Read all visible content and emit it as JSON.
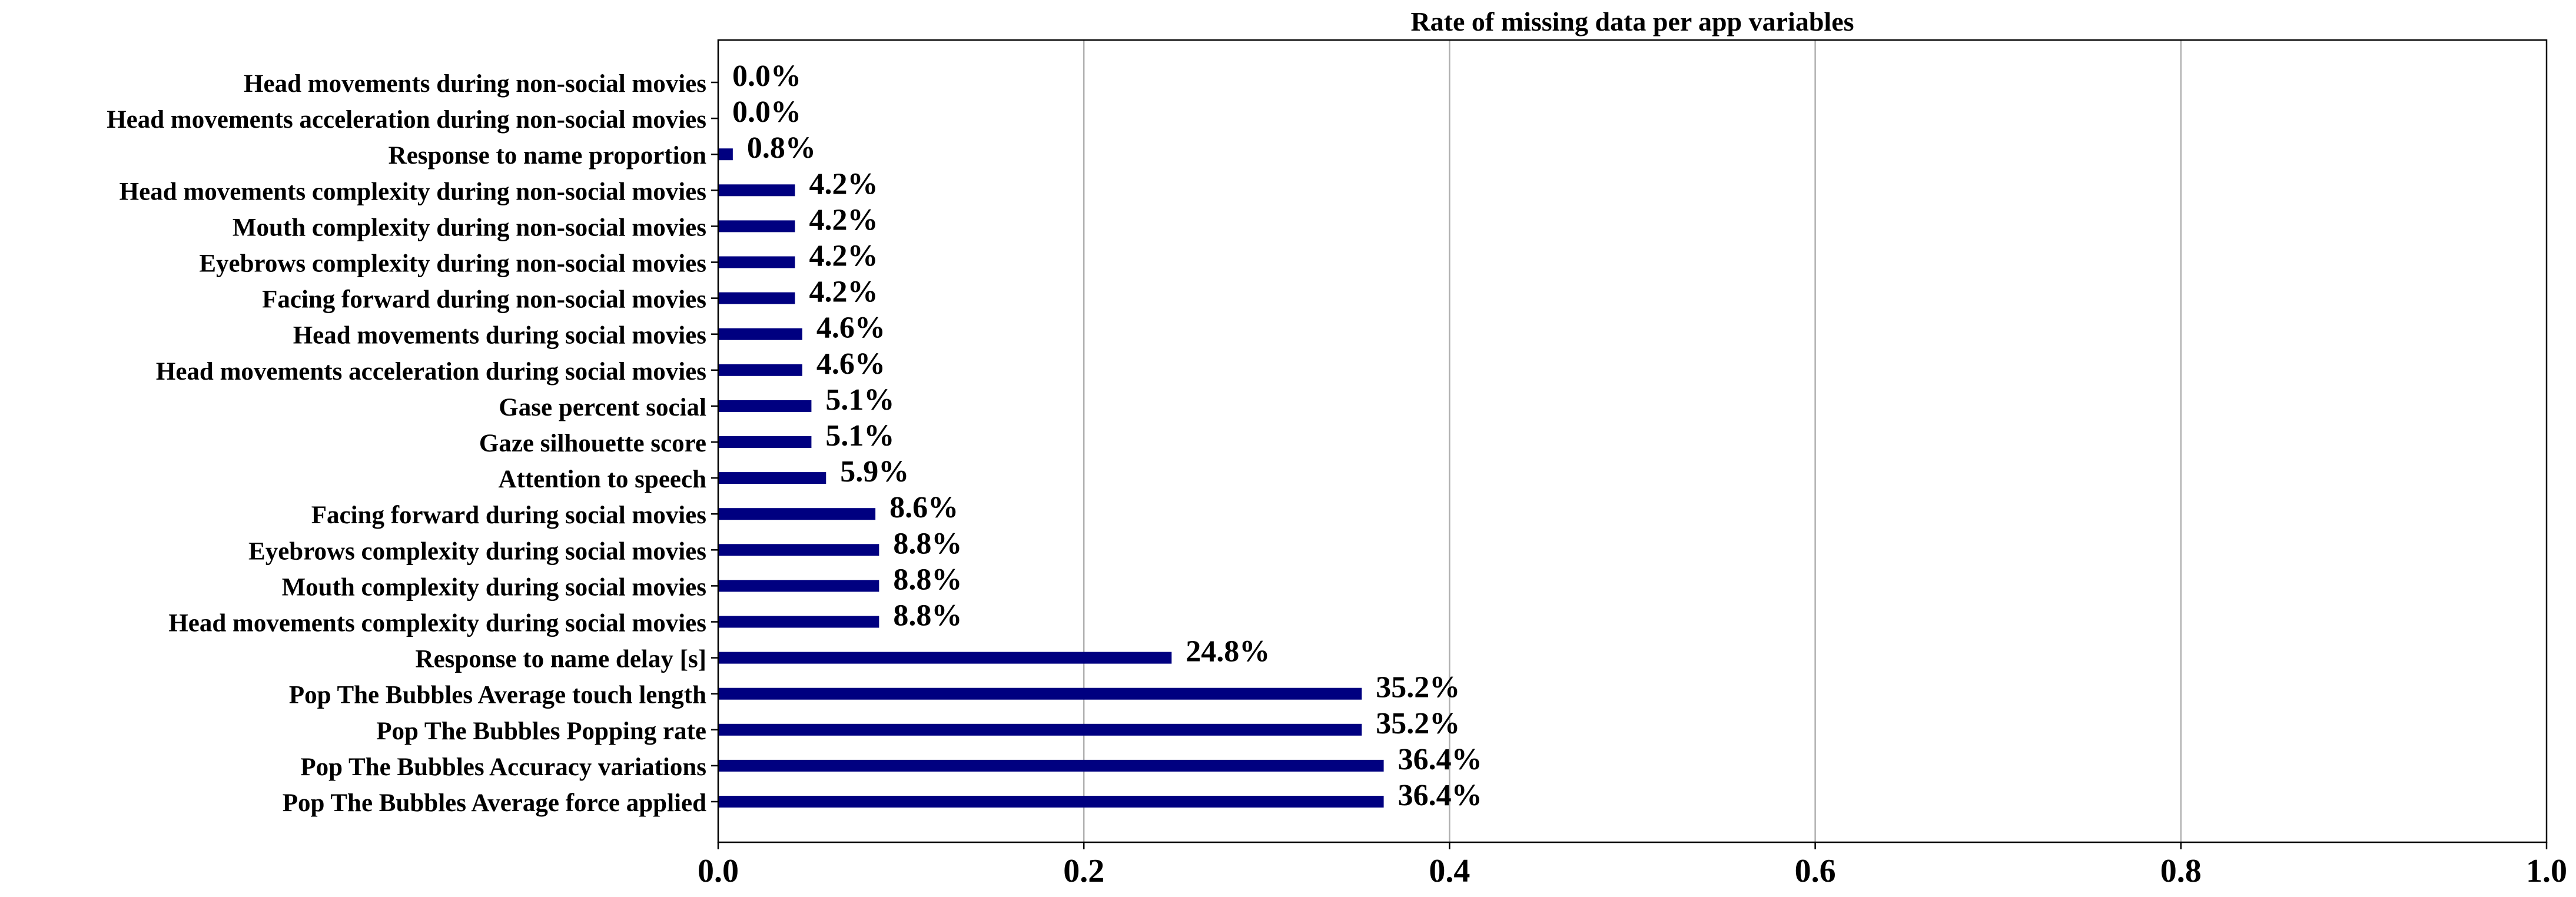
{
  "chart_data": {
    "type": "bar",
    "orientation": "horizontal",
    "title": "Rate of missing data per app variables",
    "xlabel": "",
    "ylabel": "",
    "xlim": [
      0,
      1
    ],
    "xticks": [
      "0.0",
      "0.2",
      "0.4",
      "0.6",
      "0.8",
      "1.0"
    ],
    "grid": "vertical",
    "bar_color": "#000080",
    "categories": [
      "Head movements during non-social movies",
      "Head movements acceleration during non-social movies",
      "Response to name proportion",
      "Head movements complexity during non-social movies",
      "Mouth complexity during non-social movies",
      "Eyebrows complexity during non-social movies",
      "Facing forward during non-social movies",
      "Head movements during social movies",
      "Head movements acceleration during social movies",
      "Gase percent social",
      "Gaze silhouette score",
      "Attention to speech",
      "Facing forward during social movies",
      "Eyebrows complexity during social movies",
      "Mouth complexity during social movies",
      "Head movements complexity during social movies",
      "Response to name delay [s]",
      "Pop The Bubbles Average touch length",
      "Pop The Bubbles Popping rate",
      "Pop The Bubbles Accuracy variations",
      "Pop The Bubbles Average force applied"
    ],
    "values": [
      0.0,
      0.0,
      0.008,
      0.042,
      0.042,
      0.042,
      0.042,
      0.046,
      0.046,
      0.051,
      0.051,
      0.059,
      0.086,
      0.088,
      0.088,
      0.088,
      0.248,
      0.352,
      0.352,
      0.364,
      0.364
    ],
    "data_labels": [
      "0.0%",
      "0.0%",
      "0.8%",
      "4.2%",
      "4.2%",
      "4.2%",
      "4.2%",
      "4.6%",
      "4.6%",
      "5.1%",
      "5.1%",
      "5.9%",
      "8.6%",
      "8.8%",
      "8.8%",
      "8.8%",
      "24.8%",
      "35.2%",
      "35.2%",
      "36.4%",
      "36.4%"
    ]
  }
}
